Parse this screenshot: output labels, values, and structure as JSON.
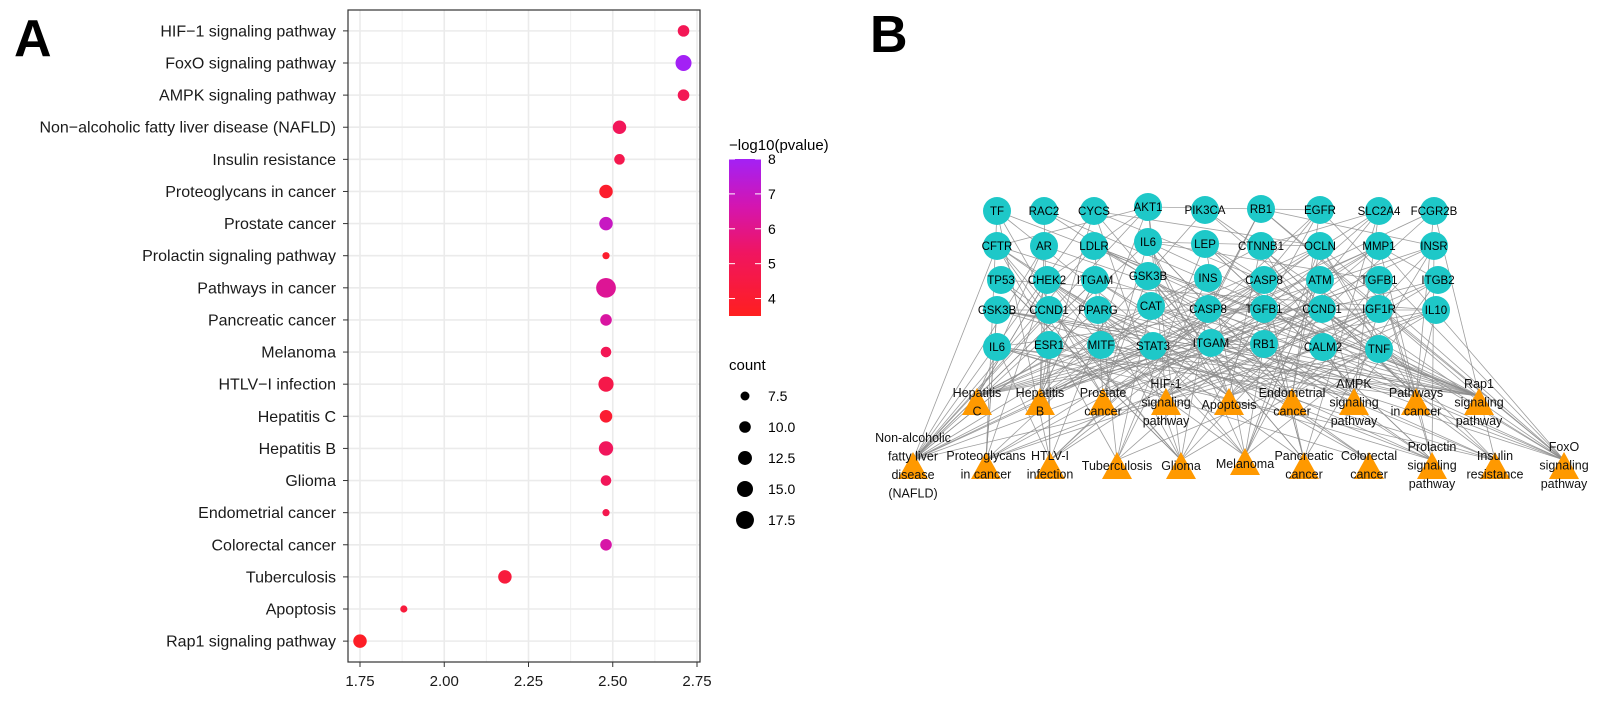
{
  "panels": {
    "a_label": "A",
    "b_label": "B"
  },
  "chart_data": [
    {
      "type": "scatter",
      "subtype": "bubble",
      "title": "",
      "xlabel": "",
      "ylabel": "",
      "xlim": [
        1.72,
        2.76
      ],
      "xticks": [
        "1.75",
        "2.00",
        "2.25",
        "2.50",
        "2.75"
      ],
      "xtick_values": [
        1.75,
        2.0,
        2.25,
        2.5,
        2.75
      ],
      "grid": true,
      "categories": [
        "HIF−1 signaling pathway",
        "FoxO signaling pathway",
        "AMPK signaling pathway",
        "Non−alcoholic fatty liver disease (NAFLD)",
        "Insulin resistance",
        "Proteoglycans in cancer",
        "Prostate cancer",
        "Prolactin signaling pathway",
        "Pathways in cancer",
        "Pancreatic cancer",
        "Melanoma",
        "HTLV−I infection",
        "Hepatitis C",
        "Hepatitis B",
        "Glioma",
        "Endometrial cancer",
        "Colorectal cancer",
        "Tuberculosis",
        "Apoptosis",
        "Rap1 signaling pathway"
      ],
      "x": [
        2.71,
        2.71,
        2.71,
        2.52,
        2.52,
        2.48,
        2.48,
        2.48,
        2.48,
        2.48,
        2.48,
        2.48,
        2.48,
        2.48,
        2.48,
        2.48,
        2.48,
        2.18,
        1.88,
        1.75
      ],
      "count": [
        10,
        15,
        10,
        12,
        9,
        12,
        12,
        6,
        20,
        10,
        9,
        14,
        11,
        13,
        9,
        6,
        10,
        12,
        6,
        12
      ],
      "neg_log10_pvalue": [
        5.0,
        8.0,
        5.0,
        5.1,
        4.8,
        3.9,
        7.0,
        3.9,
        6.2,
        6.4,
        5.0,
        4.7,
        4.0,
        5.2,
        5.1,
        4.8,
        6.5,
        4.3,
        4.3,
        3.7
      ],
      "legend": {
        "color": {
          "title": "−log10(pvalue)",
          "ticks": [
            "8",
            "7",
            "6",
            "5",
            "4"
          ],
          "tick_values": [
            8,
            7,
            6,
            5,
            4
          ],
          "range": [
            3.5,
            8.0
          ],
          "low_color": "#ff1f1f",
          "high_color": "#a020f0"
        },
        "size": {
          "title": "count",
          "labels": [
            "7.5",
            "10.0",
            "12.5",
            "15.0",
            "17.5"
          ],
          "values": [
            7.5,
            10.0,
            12.5,
            15.0,
            17.5
          ]
        },
        "placement": "right"
      }
    },
    {
      "type": "network",
      "gene_nodes": [
        "TF",
        "RAC2",
        "CYCS",
        "AKT1",
        "PIK3CA",
        "RB1",
        "EGFR",
        "SLC2A4",
        "FCGR2B",
        "CFTR",
        "AR",
        "LDLR",
        "IL6",
        "LEP",
        "CTNNB1",
        "OCLN",
        "MMP1",
        "INSR",
        "TP53",
        "CHEK2",
        "ITGAM",
        "GSK3B",
        "INS",
        "CASP8",
        "ATM",
        "TGFB1",
        "ITGB2",
        "GSK3B",
        "CCND1",
        "PPARG",
        "CAT",
        "CASP8",
        "TGFB1",
        "CCND1",
        "IGF1R",
        "IL10",
        "IL6",
        "ESR1",
        "MITF",
        "STAT3",
        "ITGAM",
        "RB1",
        "CALM2",
        "TNF"
      ],
      "pathway_nodes": [
        "Hepatitis C",
        "Hepatitis B",
        "Prostate cancer",
        "HIF-1 signaling pathway",
        "Apoptosis",
        "Endometrial cancer",
        "AMPK signaling pathway",
        "Pathways in cancer",
        "Rap1 signaling pathway",
        "Non-alcoholic fatty liver disease (NAFLD)",
        "Proteoglycans in cancer",
        "HTLV-I infection",
        "Tuberculosis",
        "Glioma",
        "Melanoma",
        "Pancreatic cancer",
        "Colorectal cancer",
        "Prolactin signaling pathway",
        "Insulin resistance",
        "FoxO signaling pathway"
      ],
      "pathway_label_lines": [
        [
          "Hepatitis",
          "C"
        ],
        [
          "Hepatitis",
          "B"
        ],
        [
          "Prostate",
          "cancer"
        ],
        [
          "HIF-1",
          "signaling",
          "pathway"
        ],
        [
          "Apoptosis"
        ],
        [
          "Endometrial",
          "cancer"
        ],
        [
          "AMPK",
          "signaling",
          "pathway"
        ],
        [
          "Pathways",
          "in cancer"
        ],
        [
          "Rap1",
          "signaling",
          "pathway"
        ],
        [
          "Non-alcoholic",
          "fatty liver",
          "disease",
          "(NAFLD)"
        ],
        [
          "Proteoglycans",
          "in cancer"
        ],
        [
          "HTLV-I",
          "infection"
        ],
        [
          "Tuberculosis"
        ],
        [
          "Glioma"
        ],
        [
          "Melanoma"
        ],
        [
          "Pancreatic",
          "cancer"
        ],
        [
          "Colorectal",
          "cancer"
        ],
        [
          "Prolactin",
          "signaling",
          "pathway"
        ],
        [
          "Insulin",
          "resistance"
        ],
        [
          "FoxO",
          "signaling",
          "pathway"
        ]
      ],
      "gene_node_color": "#1ec8c8",
      "pathway_node_color": "#ff9900",
      "edge_color": "#8c8c8c"
    }
  ]
}
